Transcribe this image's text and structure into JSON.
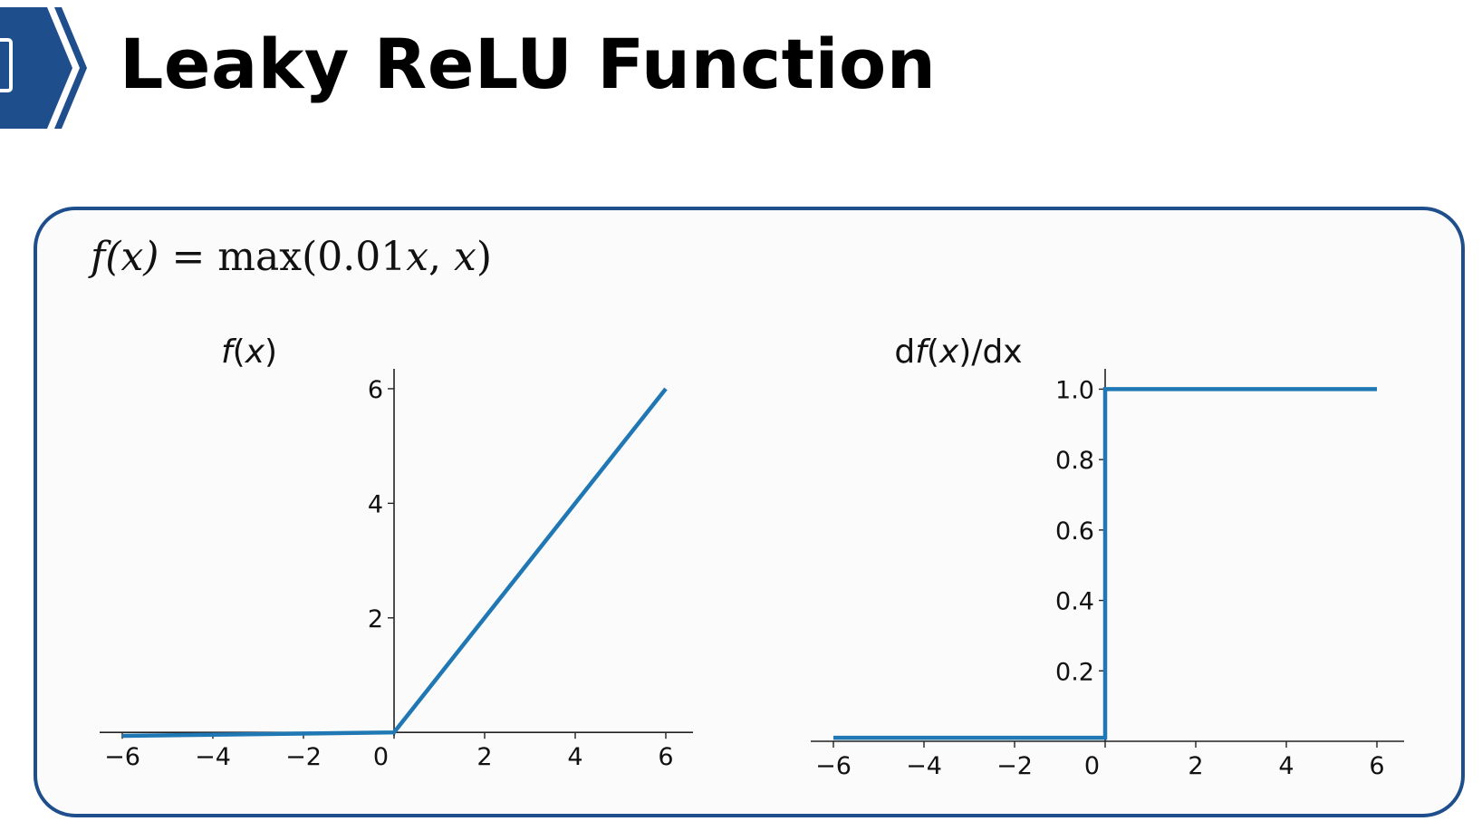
{
  "slide": {
    "title": "Leaky ReLU Function",
    "formula": {
      "lhs_fn": "f",
      "lhs_arg": "(x)",
      "equals": " = ",
      "rhs_max": "max(0.01",
      "rhs_x1": "x",
      "rhs_sep": ", ",
      "rhs_x2": "x",
      "rhs_close": ")"
    }
  },
  "colors": {
    "accent": "#1f4e8c",
    "line": "#1f77b4",
    "axis": "#222222"
  },
  "icons": {
    "header_badge": "chevron-badge-icon"
  },
  "chart_data": [
    {
      "type": "line",
      "title": "f(x)",
      "title_parts": [
        "",
        "f",
        "(",
        "x",
        ")"
      ],
      "xlim": [
        -6.5,
        6.6
      ],
      "ylim": [
        -0.06,
        6.3
      ],
      "xticks": [
        -6,
        -4,
        -2,
        0,
        2,
        4,
        6
      ],
      "yticks": [
        2,
        4,
        6
      ],
      "xtick_labels": [
        "−6",
        "−4",
        "−2",
        "0",
        "2",
        "4",
        "6"
      ],
      "ytick_labels": [
        "2",
        "4",
        "6"
      ],
      "grid": false,
      "spines": "centered",
      "series": [
        {
          "x": [
            -6,
            0,
            6
          ],
          "y": [
            -0.06,
            0,
            6
          ]
        }
      ]
    },
    {
      "type": "line",
      "title": "df(x)/dx",
      "title_parts": [
        "d",
        "f",
        "(",
        "x",
        ")/dx"
      ],
      "xlim": [
        -6.5,
        6.6
      ],
      "ylim": [
        0,
        1.05
      ],
      "xticks": [
        -6,
        -4,
        -2,
        0,
        2,
        4,
        6
      ],
      "yticks": [
        0.2,
        0.4,
        0.6,
        0.8,
        1.0
      ],
      "xtick_labels": [
        "−6",
        "−4",
        "−2",
        "0",
        "2",
        "4",
        "6"
      ],
      "ytick_labels": [
        "0.2",
        "0.4",
        "0.6",
        "0.8",
        "1.0"
      ],
      "grid": false,
      "spines": "centered",
      "series": [
        {
          "x": [
            -6,
            0,
            0,
            6
          ],
          "y": [
            0.01,
            0.01,
            1,
            1
          ]
        }
      ]
    }
  ]
}
